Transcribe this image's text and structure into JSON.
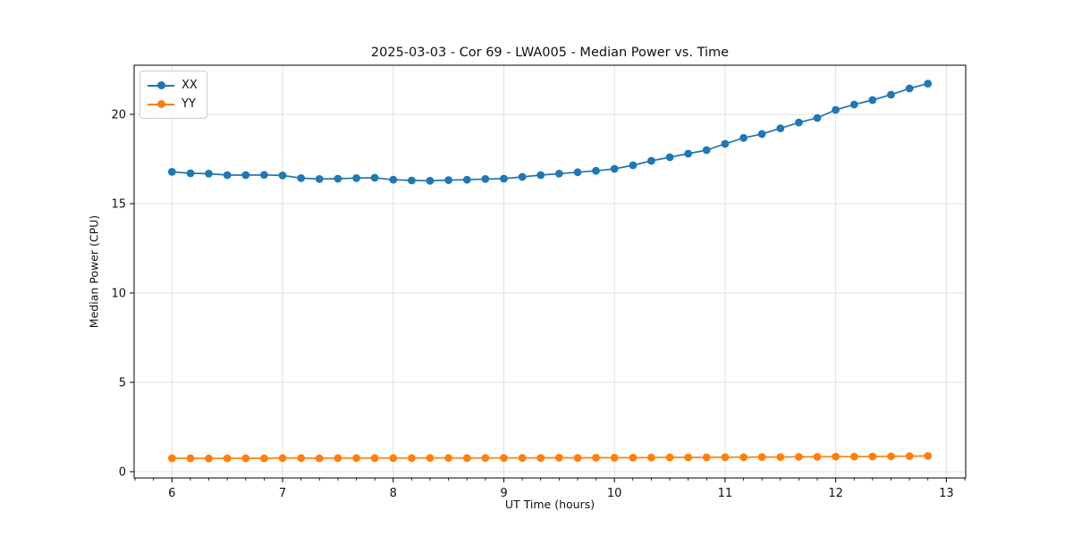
{
  "chart_data": {
    "type": "line",
    "title": "2025-03-03 - Cor 69 - LWA005 - Median Power vs. Time",
    "xlabel": "UT Time (hours)",
    "ylabel": "Median Power (CPU)",
    "xlim": [
      5.658,
      13.175
    ],
    "ylim": [
      -0.35,
      22.75
    ],
    "xticks": [
      6,
      7,
      8,
      9,
      10,
      11,
      12,
      13
    ],
    "yticks": [
      0,
      5,
      10,
      15,
      20
    ],
    "x_minor_divisions": 6,
    "grid": true,
    "grid_color": "#e0e0e0",
    "spine_color": "#000000",
    "legend_position": "upper left",
    "marker": "circle",
    "x": [
      6.0,
      6.167,
      6.333,
      6.5,
      6.667,
      6.833,
      7.0,
      7.167,
      7.333,
      7.5,
      7.667,
      7.833,
      8.0,
      8.167,
      8.333,
      8.5,
      8.667,
      8.833,
      9.0,
      9.167,
      9.333,
      9.5,
      9.667,
      9.833,
      10.0,
      10.167,
      10.333,
      10.5,
      10.667,
      10.833,
      11.0,
      11.167,
      11.333,
      11.5,
      11.667,
      11.833,
      12.0,
      12.167,
      12.333,
      12.5,
      12.667,
      12.833
    ],
    "series": [
      {
        "name": "XX",
        "color": "#1f77b4",
        "values": [
          16.78,
          16.7,
          16.68,
          16.6,
          16.6,
          16.61,
          16.58,
          16.43,
          16.38,
          16.4,
          16.43,
          16.45,
          16.34,
          16.3,
          16.28,
          16.32,
          16.34,
          16.38,
          16.4,
          16.5,
          16.6,
          16.68,
          16.76,
          16.84,
          16.95,
          17.15,
          17.4,
          17.6,
          17.8,
          18.0,
          18.35,
          18.68,
          18.9,
          19.22,
          19.54,
          19.8,
          20.25,
          20.55,
          20.8,
          21.1,
          21.45,
          21.72
        ]
      },
      {
        "name": "YY",
        "color": "#ff7f0e",
        "values": [
          0.75,
          0.75,
          0.74,
          0.75,
          0.75,
          0.75,
          0.76,
          0.76,
          0.75,
          0.76,
          0.76,
          0.76,
          0.76,
          0.76,
          0.77,
          0.77,
          0.76,
          0.77,
          0.77,
          0.77,
          0.77,
          0.78,
          0.77,
          0.78,
          0.78,
          0.78,
          0.79,
          0.8,
          0.8,
          0.8,
          0.81,
          0.81,
          0.82,
          0.82,
          0.83,
          0.83,
          0.84,
          0.84,
          0.85,
          0.86,
          0.87,
          0.88
        ]
      }
    ]
  },
  "legend": {
    "entries": [
      {
        "label": "XX"
      },
      {
        "label": "YY"
      }
    ]
  }
}
